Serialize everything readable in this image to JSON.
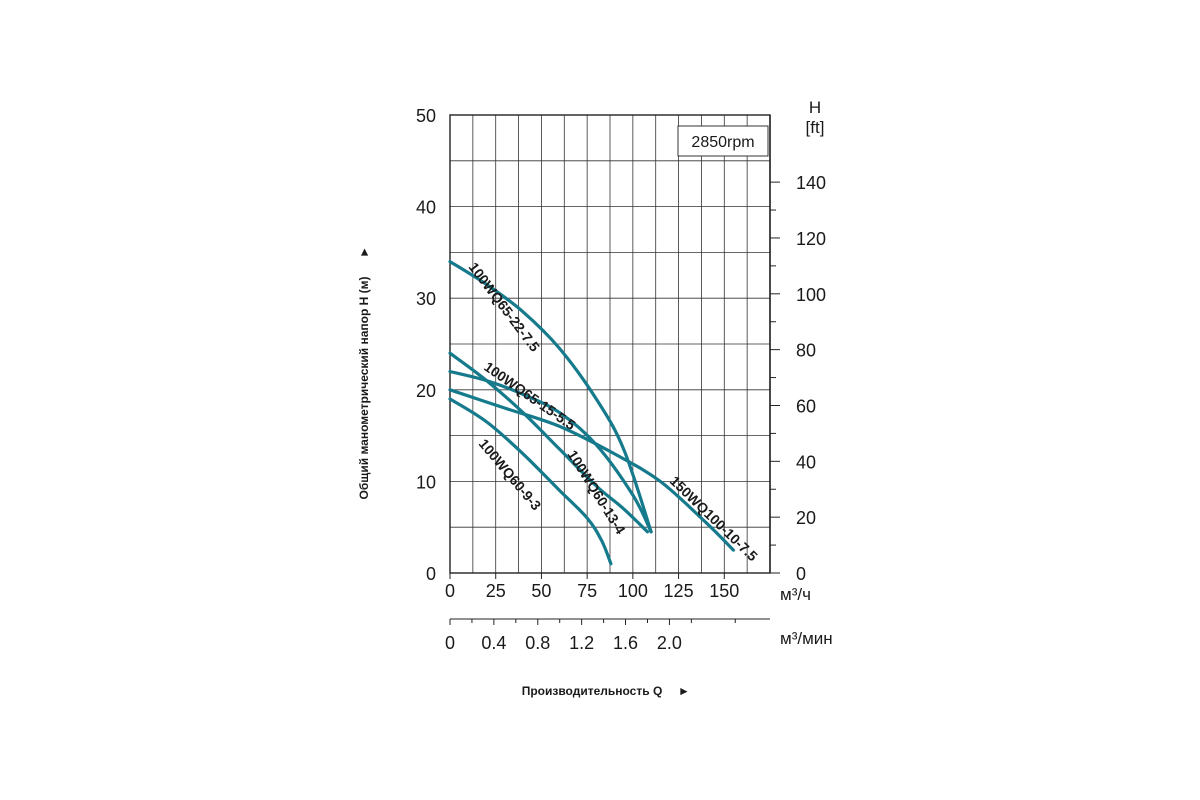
{
  "chart_data": {
    "type": "line",
    "title": "",
    "annotation": "2850rpm",
    "xlabel": "Производительность Q",
    "ylabel": "Общий манометрический напор H (м)",
    "x_unit": "м³/ч",
    "x2_unit": "м³/мин",
    "y2_label": "H",
    "y2_unit": "[ft]",
    "xlim": [
      0,
      175
    ],
    "ylim": [
      0,
      50
    ],
    "x_ticks": [
      0,
      25,
      50,
      75,
      100,
      125,
      150
    ],
    "x2_ticks": [
      "0",
      "0.4",
      "0.8",
      "1.2",
      "1.6",
      "2.0"
    ],
    "x2_tick_values": [
      0,
      0.4,
      0.8,
      1.2,
      1.6,
      2.0
    ],
    "y_ticks": [
      0,
      10,
      20,
      30,
      40,
      50
    ],
    "y2_ticks": [
      0,
      20,
      40,
      60,
      80,
      100,
      120,
      140
    ],
    "grid": true,
    "arrow": "►",
    "series": [
      {
        "name": "100WQ65-22-7.5",
        "x": [
          0,
          20,
          40,
          60,
          80,
          95,
          110
        ],
        "y": [
          34,
          31.5,
          28.5,
          24.5,
          19,
          13.5,
          4.5
        ]
      },
      {
        "name": "100WQ65-15-5.5",
        "x": [
          0,
          20,
          40,
          60,
          80,
          100,
          110
        ],
        "y": [
          22,
          21,
          19.5,
          17.5,
          14,
          8.5,
          4.5
        ]
      },
      {
        "name": "100WQ60-13-4",
        "x": [
          0,
          20,
          40,
          60,
          80,
          95,
          108
        ],
        "y": [
          24,
          21,
          17.5,
          13.5,
          9.5,
          7,
          4.5
        ]
      },
      {
        "name": "150WQ100-10-7.5",
        "x": [
          0,
          30,
          60,
          90,
          115,
          140,
          155
        ],
        "y": [
          20,
          18,
          16,
          13,
          10,
          5.5,
          2.5
        ]
      },
      {
        "name": "100WQ60-9-3",
        "x": [
          0,
          20,
          40,
          60,
          75,
          83,
          88
        ],
        "y": [
          19,
          16.5,
          13,
          9,
          6,
          3.5,
          1
        ]
      }
    ]
  }
}
